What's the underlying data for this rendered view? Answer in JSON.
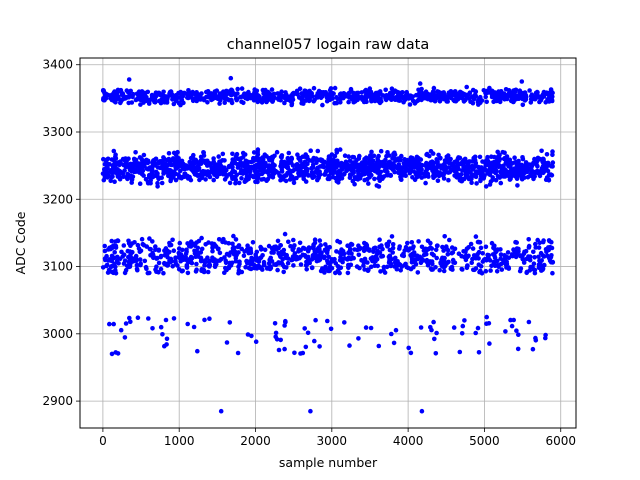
{
  "chart_data": {
    "type": "scatter",
    "title": "channel057 logain raw data",
    "xlabel": "sample number",
    "ylabel": "ADC Code",
    "xlim": [
      -300,
      6200
    ],
    "ylim": [
      2860,
      3410
    ],
    "xticks": [
      0,
      1000,
      2000,
      3000,
      4000,
      5000,
      6000
    ],
    "yticks": [
      2900,
      3000,
      3100,
      3200,
      3300,
      3400
    ],
    "grid": true,
    "marker_color": "#0000ff",
    "sample_range": [
      0,
      5900
    ],
    "bands": [
      {
        "center": 3352,
        "spread_min": 3338,
        "spread_max": 3368,
        "outliers": [
          3372,
          3375,
          3378,
          3380
        ],
        "density": "dense"
      },
      {
        "center": 3245,
        "spread_min": 3215,
        "spread_max": 3278,
        "outliers": [],
        "density": "very dense"
      },
      {
        "center": 3135,
        "spread_min": 3090,
        "spread_max": 3152,
        "outliers": [],
        "density": "dense"
      },
      {
        "center": 3008,
        "spread_min": 2970,
        "spread_max": 3025,
        "outliers": [],
        "density": "sparse"
      }
    ],
    "isolated_points": [
      {
        "x": 1550,
        "y": 2885
      },
      {
        "x": 2720,
        "y": 2885
      },
      {
        "x": 4180,
        "y": 2885
      }
    ]
  }
}
